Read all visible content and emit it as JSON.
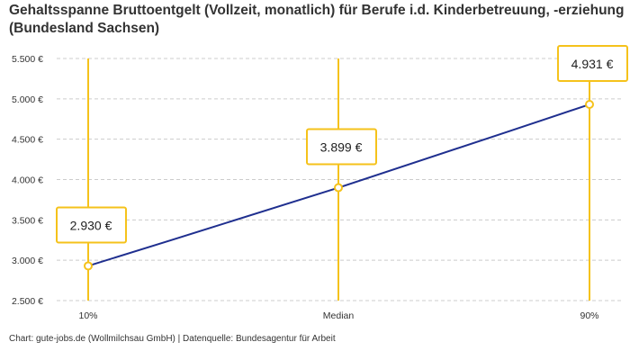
{
  "title": "Gehaltsspanne Bruttoentgelt (Vollzeit, monatlich) für Berufe i.d. Kinderbetreuung, -erziehung (Bundesland Sachsen)",
  "footer": "Chart: gute-jobs.de (Wollmilchsau GmbH) | Datenquelle: Bundesagentur für Arbeit",
  "chart_data": {
    "type": "line",
    "categories": [
      "10%",
      "Median",
      "90%"
    ],
    "values": [
      2930,
      3899,
      4931
    ],
    "data_labels": [
      "2.930 €",
      "3.899 €",
      "4.931 €"
    ],
    "yticks": [
      2500,
      3000,
      3500,
      4000,
      4500,
      5000,
      5500
    ],
    "ytick_labels": [
      "2.500 €",
      "3.000 €",
      "3.500 €",
      "4.000 €",
      "4.500 €",
      "5.000 €",
      "5.500 €"
    ],
    "ylim": [
      2500,
      5500
    ],
    "grid": true,
    "colors": {
      "line": "#1f2f8f",
      "marker": "#f5c21b",
      "grid": "#cccccc"
    }
  }
}
